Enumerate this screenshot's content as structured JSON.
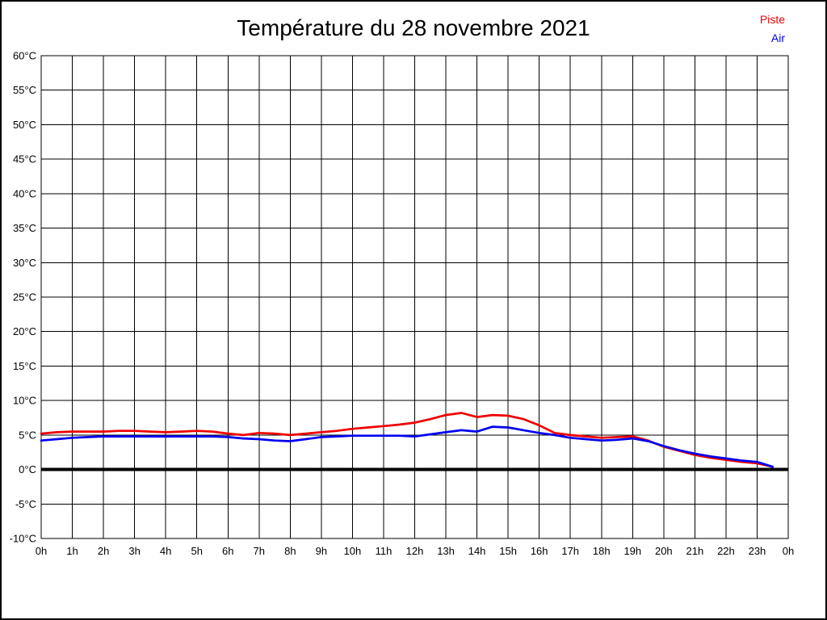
{
  "page": {
    "title": "Température du 28 novembre 2021",
    "background_color": "#ffffff",
    "frame_border_color": "#000000"
  },
  "legend": {
    "position": "top-right",
    "items": [
      {
        "label": "Piste",
        "color": "#ee0000"
      },
      {
        "label": "Air",
        "color": "#0000ee"
      }
    ]
  },
  "chart_data": {
    "type": "line",
    "title": "Température du 28 novembre 2021",
    "xlabel": "",
    "ylabel": "",
    "xlim": [
      0,
      24
    ],
    "ylim": [
      -10,
      60
    ],
    "x_tick_step_hours": 1,
    "y_tick_step_degrees": 5,
    "grid": true,
    "grid_color": "#000000",
    "axis_color": "#000000",
    "zero_line": {
      "value": 0,
      "color": "#000000",
      "width": 4
    },
    "legend_position": "top-right",
    "x_tick_labels": [
      "0h",
      "1h",
      "2h",
      "3h",
      "4h",
      "5h",
      "6h",
      "7h",
      "8h",
      "9h",
      "10h",
      "11h",
      "12h",
      "13h",
      "14h",
      "15h",
      "16h",
      "17h",
      "18h",
      "19h",
      "20h",
      "21h",
      "22h",
      "23h",
      "0h"
    ],
    "y_tick_labels": [
      "60°C",
      "55°C",
      "50°C",
      "45°C",
      "40°C",
      "35°C",
      "30°C",
      "25°C",
      "20°C",
      "15°C",
      "10°C",
      "5°C",
      "0°C",
      "-5°C",
      "-10°C"
    ],
    "y_tick_values": [
      60,
      55,
      50,
      45,
      40,
      35,
      30,
      25,
      20,
      15,
      10,
      5,
      0,
      -5,
      -10
    ],
    "x": [
      0,
      0.5,
      1,
      1.5,
      2,
      2.5,
      3,
      3.5,
      4,
      4.5,
      5,
      5.5,
      6,
      6.5,
      7,
      7.5,
      8,
      8.5,
      9,
      9.5,
      10,
      10.5,
      11,
      11.5,
      12,
      12.5,
      13,
      13.5,
      14,
      14.5,
      15,
      15.5,
      16,
      16.5,
      17,
      17.5,
      18,
      18.5,
      19,
      19.5,
      20,
      20.5,
      21,
      21.5,
      22,
      22.5,
      23,
      23.5
    ],
    "series": [
      {
        "name": "Piste",
        "color": "#ee0000",
        "values": [
          5.2,
          5.4,
          5.5,
          5.5,
          5.5,
          5.6,
          5.6,
          5.5,
          5.4,
          5.5,
          5.6,
          5.5,
          5.2,
          5.0,
          5.3,
          5.2,
          5.0,
          5.2,
          5.4,
          5.6,
          5.9,
          6.1,
          6.3,
          6.5,
          6.8,
          7.3,
          7.9,
          8.2,
          7.6,
          7.9,
          7.8,
          7.3,
          6.4,
          5.3,
          5.0,
          4.8,
          4.6,
          4.7,
          4.8,
          4.2,
          3.3,
          2.7,
          2.1,
          1.7,
          1.4,
          1.1,
          0.9,
          0.4
        ]
      },
      {
        "name": "Air",
        "color": "#0000ee",
        "values": [
          4.2,
          4.4,
          4.6,
          4.7,
          4.8,
          4.8,
          4.8,
          4.8,
          4.8,
          4.8,
          4.8,
          4.8,
          4.7,
          4.5,
          4.4,
          4.2,
          4.1,
          4.4,
          4.7,
          4.8,
          4.9,
          4.9,
          4.9,
          4.9,
          4.8,
          5.1,
          5.4,
          5.7,
          5.5,
          6.2,
          6.1,
          5.7,
          5.3,
          5.0,
          4.6,
          4.4,
          4.2,
          4.3,
          4.5,
          4.1,
          3.4,
          2.8,
          2.3,
          1.9,
          1.6,
          1.3,
          1.1,
          0.4
        ]
      }
    ]
  }
}
